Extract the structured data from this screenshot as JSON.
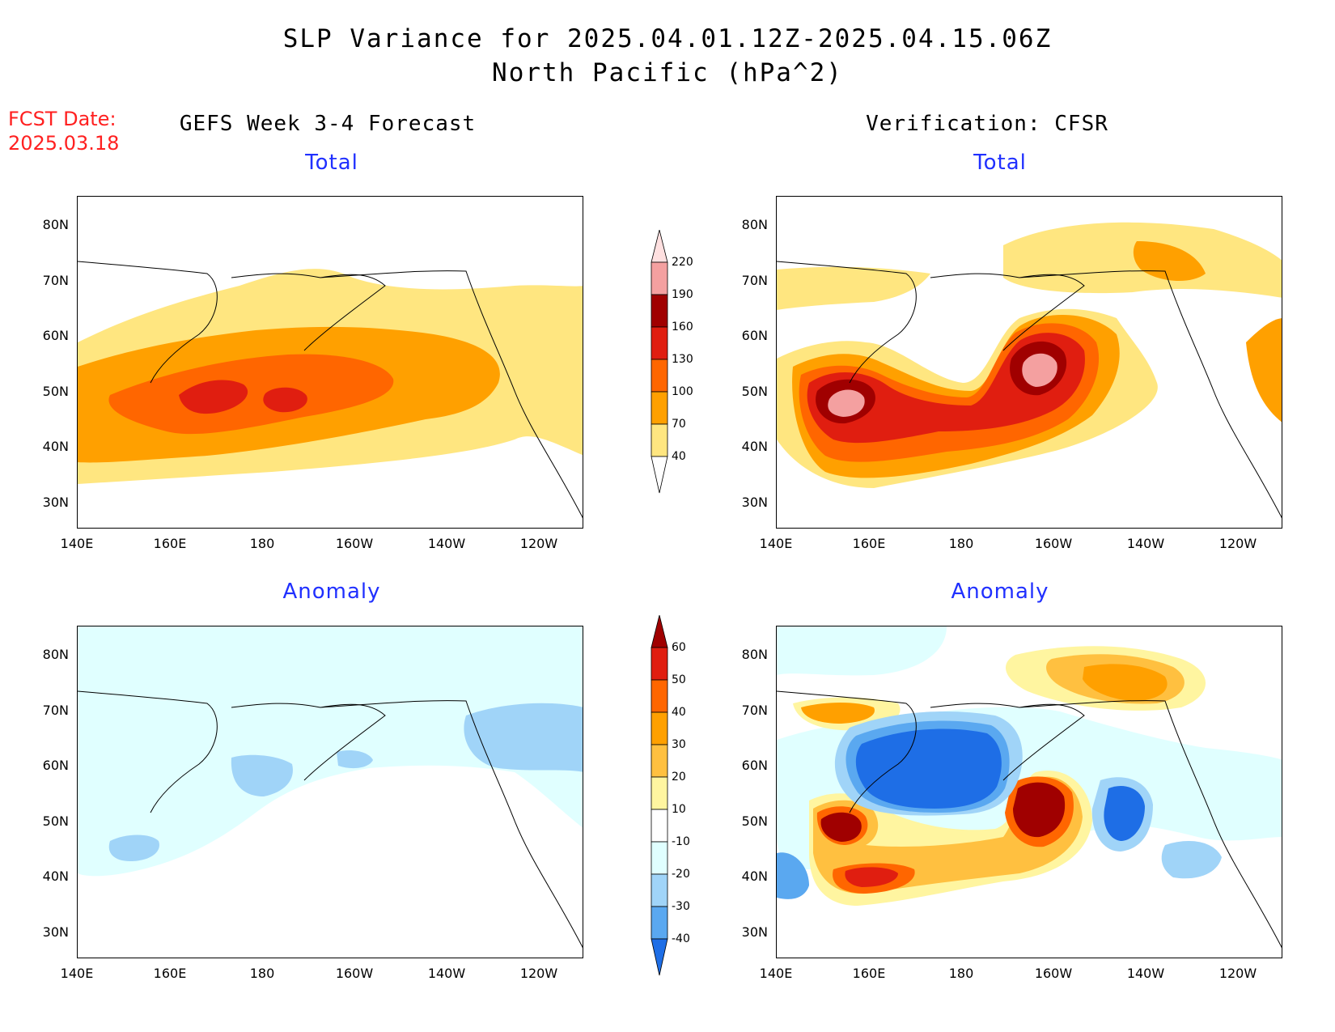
{
  "title_line1": "SLP Variance for 2025.04.01.12Z-2025.04.15.06Z",
  "title_line2": "North Pacific (hPa^2)",
  "fcst_label": "FCST Date:",
  "fcst_date": "2025.03.18",
  "left_header": "GEFS Week 3-4 Forecast",
  "right_header": "Verification: CFSR",
  "sub_total": "Total",
  "sub_anomaly": "Anomaly",
  "lat_labels": [
    "80N",
    "70N",
    "60N",
    "50N",
    "40N",
    "30N"
  ],
  "lon_labels": [
    "140E",
    "160E",
    "180",
    "160W",
    "140W",
    "120W"
  ],
  "total_colorbar": {
    "labels": [
      "220",
      "190",
      "160",
      "130",
      "100",
      "70",
      "40"
    ],
    "colors": [
      "#ffe0e0",
      "#f4a0a0",
      "#a00000",
      "#e01e10",
      "#ff6600",
      "#ffa000",
      "#ffe680"
    ]
  },
  "anomaly_colorbar": {
    "labels": [
      "60",
      "50",
      "40",
      "30",
      "20",
      "10",
      "-10",
      "-20",
      "-30",
      "-40"
    ],
    "colors": [
      "#a00000",
      "#e01e10",
      "#ff6600",
      "#ffa000",
      "#ffc040",
      "#fff5a0",
      "#ffffff",
      "#e0ffff",
      "#a0d4f8",
      "#5aa8f0",
      "#1e6ee6"
    ]
  }
}
